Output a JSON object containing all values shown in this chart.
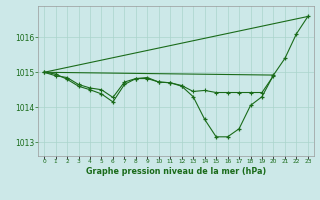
{
  "background_color": "#cce8e8",
  "grid_color": "#aad4cc",
  "line_color": "#1a6b1a",
  "title": "Graphe pression niveau de la mer (hPa)",
  "ylabel_ticks": [
    1013,
    1014,
    1015,
    1016
  ],
  "xlim": [
    -0.5,
    23.5
  ],
  "ylim": [
    1012.6,
    1016.9
  ],
  "series_main": {
    "x": [
      0,
      1,
      2,
      3,
      4,
      5,
      6,
      7,
      8,
      9,
      10,
      11,
      12,
      13,
      14,
      15,
      16,
      17,
      18,
      19,
      20,
      21,
      22,
      23
    ],
    "y": [
      1015.0,
      1014.95,
      1014.8,
      1014.6,
      1014.5,
      1014.38,
      1014.15,
      1014.65,
      1014.82,
      1014.85,
      1014.72,
      1014.7,
      1014.6,
      1014.3,
      1013.65,
      1013.15,
      1013.15,
      1013.38,
      1014.05,
      1014.3,
      1014.92,
      1015.4,
      1016.1,
      1016.6
    ]
  },
  "series_flat": {
    "x": [
      0,
      20
    ],
    "y": [
      1015.0,
      1014.92
    ]
  },
  "series_rising": {
    "x": [
      0,
      23
    ],
    "y": [
      1015.0,
      1016.6
    ]
  },
  "series_short": {
    "x": [
      0,
      1,
      2,
      3,
      4,
      5,
      6,
      7,
      8,
      9,
      10,
      11,
      12,
      13,
      14,
      15,
      16,
      17,
      18,
      19,
      20
    ],
    "y": [
      1015.0,
      1014.9,
      1014.85,
      1014.65,
      1014.55,
      1014.5,
      1014.28,
      1014.72,
      1014.82,
      1014.82,
      1014.72,
      1014.7,
      1014.62,
      1014.45,
      1014.48,
      1014.42,
      1014.42,
      1014.42,
      1014.42,
      1014.42,
      1014.9
    ]
  }
}
